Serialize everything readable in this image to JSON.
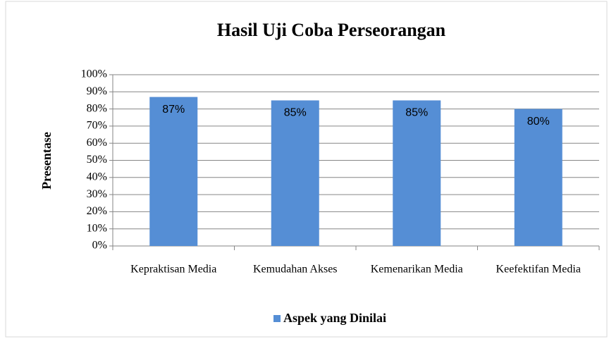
{
  "chart_data": {
    "type": "bar",
    "title": "Hasil Uji Coba Perseorangan",
    "ylabel": "Presentase",
    "categories": [
      "Kepraktisan Media",
      "Kemudahan Akses",
      "Kemenarikan Media",
      "Keefektifan Media"
    ],
    "series": [
      {
        "name": "Aspek yang Dinilai",
        "color": "#558ed5",
        "values": [
          87,
          85,
          85,
          80
        ],
        "value_labels": [
          "87%",
          "85%",
          "85%",
          "80%"
        ]
      }
    ],
    "ylim": [
      0,
      100
    ],
    "yticks": [
      {
        "value": 0,
        "label": "0%"
      },
      {
        "value": 10,
        "label": "10%"
      },
      {
        "value": 20,
        "label": "20%"
      },
      {
        "value": 30,
        "label": "30%"
      },
      {
        "value": 40,
        "label": "40%"
      },
      {
        "value": 50,
        "label": "50%"
      },
      {
        "value": 60,
        "label": "60%"
      },
      {
        "value": 70,
        "label": "70%"
      },
      {
        "value": 80,
        "label": "80%"
      },
      {
        "value": 90,
        "label": "90%"
      },
      {
        "value": 100,
        "label": "100%"
      }
    ],
    "grid": true,
    "legend": "bottom"
  }
}
